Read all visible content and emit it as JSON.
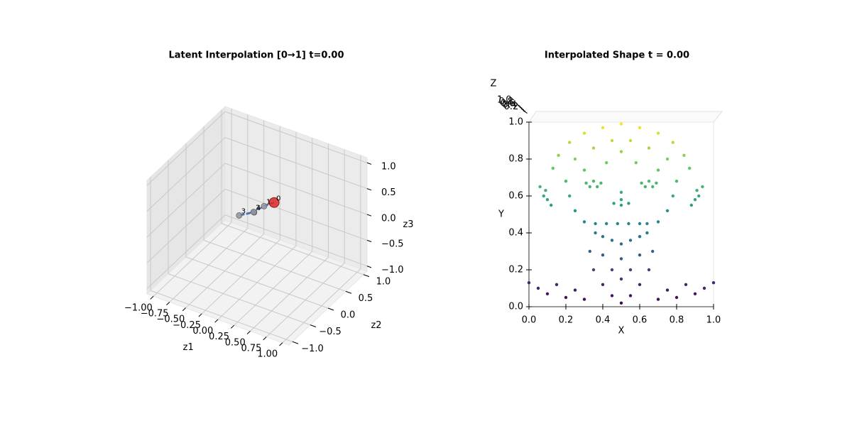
{
  "chart_data": [
    {
      "type": "scatter3d",
      "title": "Latent Interpolation [0→1] t=0.00",
      "xlabel": "z1",
      "ylabel": "z2",
      "zlabel": "z3",
      "xlim": [
        -1.1,
        1.1
      ],
      "ylim": [
        -1.1,
        1.1
      ],
      "zlim": [
        -1.1,
        1.1
      ],
      "xticks": [
        {
          "value": -1,
          "label": "−1.00"
        },
        {
          "value": -0.75,
          "label": "−0.75"
        },
        {
          "value": -0.5,
          "label": "−0.50"
        },
        {
          "value": -0.25,
          "label": "−0.25"
        },
        {
          "value": 0,
          "label": "0.00"
        },
        {
          "value": 0.25,
          "label": "0.25"
        },
        {
          "value": 0.5,
          "label": "0.50"
        },
        {
          "value": 0.75,
          "label": "0.75"
        },
        {
          "value": 1,
          "label": "1.00"
        }
      ],
      "yticks": [
        {
          "value": -1,
          "label": "−1.0"
        },
        {
          "value": -0.5,
          "label": "−0.5"
        },
        {
          "value": 0,
          "label": "0.0"
        },
        {
          "value": 0.5,
          "label": "0.5"
        },
        {
          "value": 1,
          "label": "1.0"
        }
      ],
      "zticks": [
        {
          "value": -1,
          "label": "−1.0"
        },
        {
          "value": -0.5,
          "label": "−0.5"
        },
        {
          "value": 0,
          "label": "0.0"
        },
        {
          "value": 0.5,
          "label": "0.5"
        },
        {
          "value": 1,
          "label": "1.0"
        }
      ],
      "grid": true,
      "line_color": "#4c72b0",
      "x": [
        0.1,
        0.0,
        -0.08,
        -0.25,
        -0.1
      ],
      "y": [
        0.3,
        0.2,
        0.05,
        -0.05,
        0.1
      ],
      "z": [
        0.3,
        0.25,
        0.2,
        0.12,
        0.15
      ],
      "point_labels": [
        "0",
        "1",
        "2",
        "3",
        "4"
      ],
      "marker_colors": [
        "#d62728",
        "#8c95a8",
        "#8c95a8",
        "#8c95a8",
        "#8c95a8"
      ]
    },
    {
      "type": "pointcloud",
      "title": "Interpolated Shape t = 0.00",
      "xlabel": "X",
      "ylabel": "Y",
      "zlabel": "Z",
      "xlim": [
        0,
        1
      ],
      "ylim": [
        0,
        1
      ],
      "zlim": [
        0,
        1
      ],
      "xticks": [
        {
          "value": 0,
          "label": "0.0"
        },
        0.2,
        0.4,
        0.6,
        0.8,
        {
          "value": 1,
          "label": "1.0"
        }
      ],
      "yticks": [
        {
          "value": 0,
          "label": "0.0"
        },
        0.2,
        0.4,
        0.6,
        0.8,
        {
          "value": 1,
          "label": "1.0"
        }
      ],
      "zticks": [
        {
          "value": 1,
          "label": "1.0"
        },
        0.8,
        0.6,
        0.4,
        0.2
      ],
      "colormap": "viridis",
      "x": [
        0.5,
        0.4,
        0.6,
        0.3,
        0.7,
        0.22,
        0.78,
        0.16,
        0.84,
        0.13,
        0.87,
        0.45,
        0.55,
        0.35,
        0.65,
        0.5,
        0.25,
        0.75,
        0.42,
        0.58,
        0.3,
        0.7,
        0.31,
        0.35,
        0.39,
        0.33,
        0.37,
        0.61,
        0.65,
        0.69,
        0.63,
        0.67,
        0.06,
        0.09,
        0.1,
        0.12,
        0.08,
        0.94,
        0.91,
        0.9,
        0.88,
        0.92,
        0.2,
        0.8,
        0.22,
        0.78,
        0.25,
        0.75,
        0.3,
        0.7,
        0.36,
        0.64,
        0.5,
        0.5,
        0.46,
        0.54,
        0.5,
        0.36,
        0.42,
        0.48,
        0.54,
        0.6,
        0.64,
        0.45,
        0.55,
        0.5,
        0.4,
        0.6,
        0.33,
        0.67,
        0.4,
        0.6,
        0.5,
        0.35,
        0.65,
        0.45,
        0.55,
        0.5,
        0.4,
        0.6,
        0,
        0.05,
        0.1,
        0.15,
        0.2,
        0.25,
        0.3,
        0.7,
        0.75,
        0.8,
        0.85,
        0.9,
        0.95,
        1,
        0.5,
        0.45,
        0.55
      ],
      "y": [
        0.99,
        0.97,
        0.97,
        0.94,
        0.94,
        0.89,
        0.89,
        0.82,
        0.82,
        0.75,
        0.75,
        0.9,
        0.9,
        0.86,
        0.86,
        0.84,
        0.8,
        0.8,
        0.78,
        0.78,
        0.74,
        0.74,
        0.67,
        0.68,
        0.67,
        0.65,
        0.65,
        0.67,
        0.68,
        0.67,
        0.65,
        0.65,
        0.65,
        0.63,
        0.58,
        0.55,
        0.6,
        0.65,
        0.63,
        0.58,
        0.55,
        0.6,
        0.68,
        0.68,
        0.6,
        0.6,
        0.52,
        0.52,
        0.46,
        0.46,
        0.4,
        0.4,
        0.62,
        0.58,
        0.56,
        0.56,
        0.55,
        0.45,
        0.45,
        0.45,
        0.45,
        0.45,
        0.45,
        0.36,
        0.36,
        0.34,
        0.38,
        0.38,
        0.3,
        0.3,
        0.28,
        0.28,
        0.26,
        0.2,
        0.2,
        0.2,
        0.2,
        0.15,
        0.12,
        0.12,
        0.13,
        0.1,
        0.07,
        0.12,
        0.05,
        0.09,
        0.04,
        0.04,
        0.09,
        0.05,
        0.12,
        0.07,
        0.1,
        0.13,
        0.02,
        0.06,
        0.06
      ]
    }
  ]
}
